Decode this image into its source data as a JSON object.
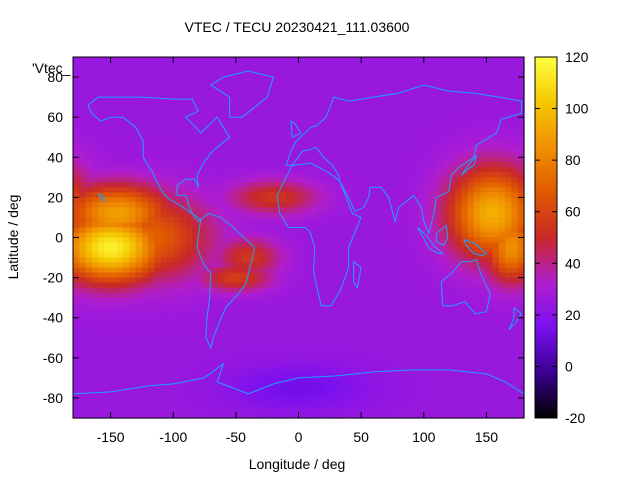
{
  "chart_data": {
    "type": "heatmap",
    "title": "VTEC / TECU 20230421_111.03600",
    "xlabel": "Longitude / deg",
    "ylabel": "Latitude / deg",
    "xlim": [
      -180,
      180
    ],
    "ylim": [
      -90,
      90
    ],
    "xticks": [
      -150,
      -100,
      -50,
      0,
      50,
      100,
      150
    ],
    "yticks": [
      -80,
      -60,
      -40,
      -20,
      0,
      20,
      40,
      60,
      80
    ],
    "colorbar": {
      "min": -20,
      "max": 120,
      "ticks": [
        -20,
        0,
        20,
        40,
        60,
        80,
        100,
        120
      ],
      "colors": [
        "#000000",
        "#3a0090",
        "#7a10f0",
        "#b01ed0",
        "#c82828",
        "#e05a00",
        "#f09000",
        "#f5c800",
        "#ffff40"
      ]
    },
    "legend_label": "'Vtec_",
    "coastline_color": "#1ea0ff",
    "hotspots": [
      {
        "lon": -150,
        "lat": -5,
        "value": 115,
        "lon_sigma": 30,
        "lat_sigma": 12
      },
      {
        "lon": -145,
        "lat": 12,
        "value": 90,
        "lon_sigma": 30,
        "lat_sigma": 10
      },
      {
        "lon": -120,
        "lat": 0,
        "value": 70,
        "lon_sigma": 35,
        "lat_sigma": 15
      },
      {
        "lon": 155,
        "lat": 12,
        "value": 95,
        "lon_sigma": 25,
        "lat_sigma": 16
      },
      {
        "lon": 170,
        "lat": -5,
        "value": 85,
        "lon_sigma": 15,
        "lat_sigma": 12
      },
      {
        "lon": -40,
        "lat": -10,
        "value": 55,
        "lon_sigma": 18,
        "lat_sigma": 7
      },
      {
        "lon": -20,
        "lat": 20,
        "value": 55,
        "lon_sigma": 25,
        "lat_sigma": 6
      },
      {
        "lon": -50,
        "lat": -20,
        "value": 58,
        "lon_sigma": 20,
        "lat_sigma": 5
      }
    ],
    "background_value": 25,
    "south_polar_min": {
      "lon": 0,
      "lat": -75,
      "value": 10
    }
  }
}
